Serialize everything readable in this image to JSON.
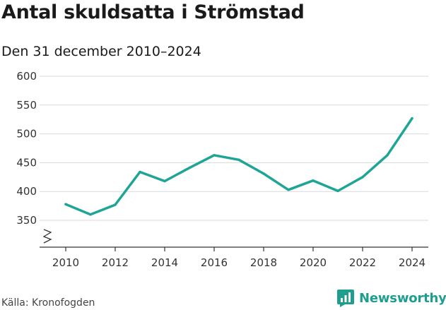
{
  "header": {
    "title": "Antal skuldsatta i Strömstad",
    "subtitle": "Den 31 december 2010–2024"
  },
  "footer": {
    "source": "Källa: Kronofogden",
    "brand": "Newsworthy"
  },
  "colors": {
    "series": "#1fa595",
    "brand": "#1f9e8f",
    "grid": "#d9d9d9",
    "axis": "#333333"
  },
  "icons": {
    "brand_logo": "bar-chart-icon",
    "axis_break": "zigzag-break-icon"
  },
  "chart_data": {
    "type": "line",
    "title": "Antal skuldsatta i Strömstad",
    "subtitle": "Den 31 december 2010–2024",
    "xlabel": "",
    "ylabel": "",
    "x": [
      2010,
      2011,
      2012,
      2013,
      2014,
      2015,
      2016,
      2017,
      2018,
      2019,
      2020,
      2021,
      2022,
      2023,
      2024
    ],
    "series": [
      {
        "name": "Antal skuldsatta",
        "values": [
          378,
          360,
          377,
          434,
          418,
          441,
          463,
          455,
          431,
          403,
          419,
          401,
          425,
          463,
          527
        ]
      }
    ],
    "xlim": [
      2010,
      2024
    ],
    "ylim": [
      350,
      600
    ],
    "x_ticks": [
      2010,
      2012,
      2014,
      2016,
      2018,
      2020,
      2022,
      2024
    ],
    "y_ticks": [
      350,
      400,
      450,
      500,
      550,
      600
    ],
    "grid": true,
    "axis_break": true
  }
}
